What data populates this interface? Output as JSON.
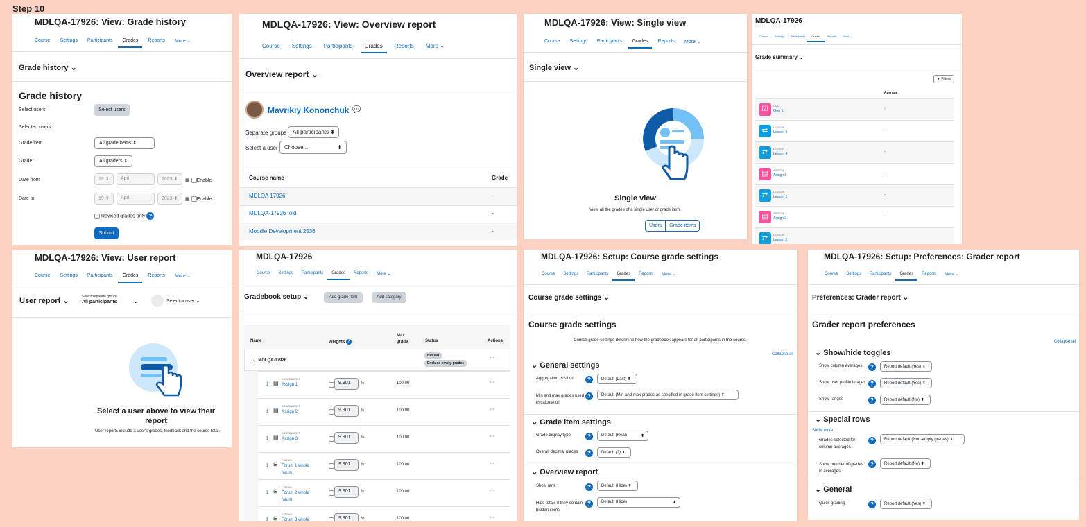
{
  "step": "Step 10",
  "nav": [
    "Course",
    "Settings",
    "Participants",
    "Grades",
    "Reports",
    "More ⌄"
  ],
  "p1": {
    "title": "MDLQA-17926: View: Grade history",
    "header": "Grade history ⌄",
    "heading": "Grade history",
    "select_users_label": "Select users",
    "select_users_btn": "Select users",
    "selected_users": "Selected users",
    "grade_item": "Grade item",
    "grade_item_val": "All grade items",
    "grader": "Grader",
    "grader_val": "All graders",
    "date_from": "Date from",
    "date_to": "Date to",
    "day": "19",
    "month": "April",
    "year": "2023",
    "enable": "Enable",
    "revised": "Revised grades only",
    "submit": "Submit"
  },
  "p2": {
    "title": "MDLQA-17926: View: Overview report",
    "header": "Overview report ⌄",
    "user": "Mavrikiy Kononchuk",
    "sep_groups": "Separate groups",
    "sep_val": "All participants",
    "select_user": "Select a user",
    "select_val": "Choose...",
    "col_course": "Course name",
    "col_grade": "Grade",
    "rows": [
      {
        "name": "MDLQA 17926",
        "grade": "-"
      },
      {
        "name": "MDLQA-17926_old",
        "grade": "-"
      },
      {
        "name": "Moodle Development 2536",
        "grade": "-"
      }
    ]
  },
  "p3": {
    "title": "MDLQA-17926: View: Single view",
    "header": "Single view ⌄",
    "heading": "Single view",
    "desc": "View all the grades of a single user or grade item.",
    "btn_users": "Users",
    "btn_items": "Grade items"
  },
  "p4": {
    "title": "MDLQA-17926",
    "header": "Grade summary ⌄",
    "filters": "Filters",
    "col_avg": "Average",
    "items": [
      {
        "type": "QUIZ",
        "name": "Quiz 1",
        "avg": "-",
        "color": "#f7539e"
      },
      {
        "type": "LESSON",
        "name": "Lesson 3",
        "avg": "-",
        "color": "#0d9edb"
      },
      {
        "type": "LESSON",
        "name": "Lesson 4",
        "avg": "-",
        "color": "#0d9edb"
      },
      {
        "type": "ASSIGN",
        "name": "Assign 1",
        "avg": "-",
        "color": "#f7539e"
      },
      {
        "type": "LESSON",
        "name": "Lesson 1",
        "avg": "-",
        "color": "#0d9edb"
      },
      {
        "type": "ASSIGN",
        "name": "Assign 2",
        "avg": "-",
        "color": "#f7539e"
      },
      {
        "type": "LESSON",
        "name": "Lesson 2",
        "avg": "",
        "color": "#0d9edb"
      }
    ]
  },
  "p5": {
    "title": "MDLQA-17926: View: User report",
    "header": "User report ⌄",
    "groups_label": "Select separate groups",
    "groups_val": "All participants",
    "select_user": "Select a user",
    "heading": "Select a user above to view their report",
    "desc": "User reports include a user's grades, feedback and the course total."
  },
  "p6": {
    "title": "MDLQA-17926",
    "header": "Gradebook setup ⌄",
    "add_item": "Add grade item",
    "add_cat": "Add category",
    "col_name": "Name",
    "col_weights": "Weights",
    "col_max": "Max grade",
    "col_status": "Status",
    "col_actions": "Actions",
    "category": "MDLQA-17926",
    "badge1": "Natural",
    "badge2": "Exclude empty grades",
    "rows": [
      {
        "type": "ASSIGNMENT",
        "name": "Assign 1",
        "weight": "9.901",
        "max": "100.00"
      },
      {
        "type": "ASSIGNMENT",
        "name": "Assign 2",
        "weight": "9.901",
        "max": "100.00"
      },
      {
        "type": "ASSIGNMENT",
        "name": "Assign 3",
        "weight": "9.901",
        "max": "100.00"
      },
      {
        "type": "FORUM",
        "name": "Forum 1 whole forum",
        "weight": "9.901",
        "max": "100.00"
      },
      {
        "type": "FORUM",
        "name": "Forum 2 whole forum",
        "weight": "9.901",
        "max": "100.00"
      },
      {
        "type": "FORUM",
        "name": "Forum 3 whole forum",
        "weight": "9.901",
        "max": "100.00"
      }
    ]
  },
  "p7": {
    "title": "MDLQA-17926: Setup: Course grade settings",
    "header": "Course grade settings ⌄",
    "heading": "Course grade settings",
    "desc": "Course grade settings determine how the gradebook appears for all participants in the course.",
    "collapse": "Collapse all",
    "s1": "General settings",
    "agg": "Aggregation position",
    "agg_val": "Default (Last)",
    "minmax": "Min and max grades used in calculation",
    "minmax_val": "Default (Min and max grades as specified in grade item settings)",
    "s2": "Grade item settings",
    "disp": "Grade display type",
    "disp_val": "Default (Real)",
    "dec": "Overall decimal places",
    "dec_val": "Default (2)",
    "s3": "Overview report",
    "rank": "Show rank",
    "rank_val": "Default (Hide)",
    "hide": "Hide totals if they contain hidden items",
    "hide_val": "Default (Hide)"
  },
  "p8": {
    "title": "MDLQA-17926: Setup: Preferences: Grader report",
    "header": "Preferences: Grader report ⌄",
    "heading": "Grader report preferences",
    "collapse": "Collapse all",
    "s1": "Show/hide toggles",
    "colavg": "Show column averages",
    "colavg_val": "Report default (Yes)",
    "profimg": "Show user profile images",
    "profimg_val": "Report default (Yes)",
    "ranges": "Show ranges",
    "ranges_val": "Report default (No)",
    "s2": "Special rows",
    "showmore": "Show more...",
    "gradesel": "Grades selected for column averages",
    "gradesel_val": "Report default (Non-empty grades)",
    "numgrades": "Show number of grades in averages",
    "numgrades_val": "Report default (No)",
    "s3": "General",
    "quick": "Quick grading",
    "quick_val": "Report default (Yes)"
  }
}
